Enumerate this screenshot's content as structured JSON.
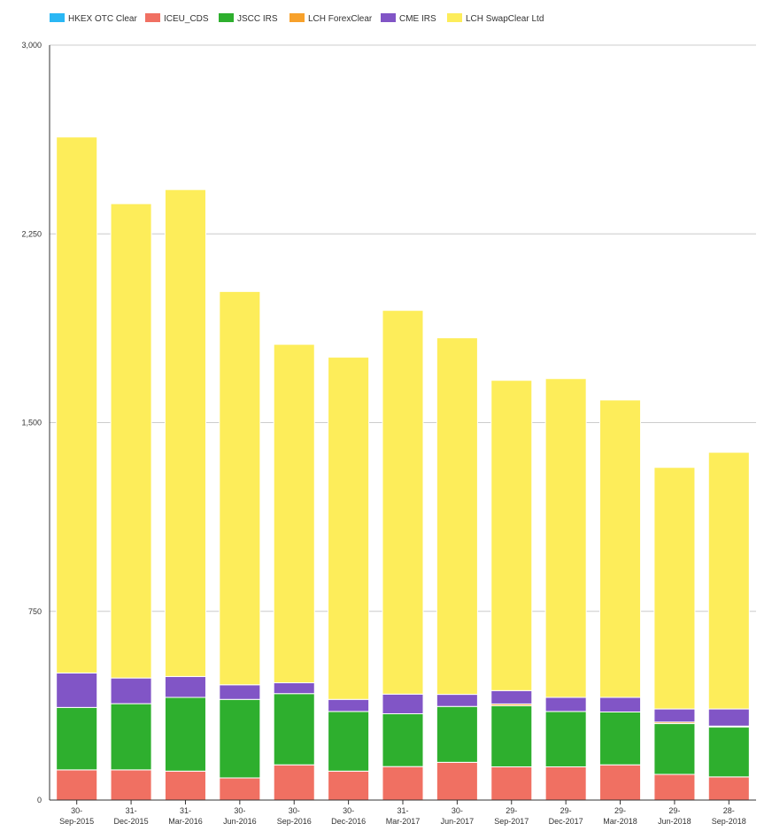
{
  "chart_data": {
    "type": "bar",
    "stacked": true,
    "categories": [
      [
        "30-",
        "Sep-2015"
      ],
      [
        "31-",
        "Dec-2015"
      ],
      [
        "31-",
        "Mar-2016"
      ],
      [
        "30-",
        "Jun-2016"
      ],
      [
        "30-",
        "Sep-2016"
      ],
      [
        "30-",
        "Dec-2016"
      ],
      [
        "31-",
        "Mar-2017"
      ],
      [
        "30-",
        "Jun-2017"
      ],
      [
        "29-",
        "Sep-2017"
      ],
      [
        "29-",
        "Dec-2017"
      ],
      [
        "29-",
        "Mar-2018"
      ],
      [
        "29-",
        "Jun-2018"
      ],
      [
        "28-",
        "Sep-2018"
      ]
    ],
    "series": [
      {
        "name": "HKEX OTC Clear",
        "color": "#2ab7f4",
        "values": [
          0,
          0,
          0,
          0,
          0,
          0,
          0,
          0,
          0,
          0,
          0,
          0,
          0
        ]
      },
      {
        "name": "ICEU_CDS",
        "color": "#f07062",
        "values": [
          120,
          120,
          115,
          88,
          140,
          115,
          133,
          150,
          132,
          132,
          140,
          102,
          92
        ]
      },
      {
        "name": "JSCC IRS",
        "color": "#2eaf2e",
        "values": [
          248,
          263,
          293,
          312,
          283,
          237,
          210,
          222,
          243,
          220,
          210,
          202,
          198
        ]
      },
      {
        "name": "LCH ForexClear",
        "color": "#f7a12b",
        "values": [
          0,
          0,
          0,
          0,
          0,
          0,
          0,
          0,
          7,
          0,
          0,
          6,
          4
        ]
      },
      {
        "name": "CME IRS",
        "color": "#8155c6",
        "values": [
          137,
          102,
          83,
          58,
          43,
          48,
          78,
          48,
          53,
          56,
          58,
          52,
          68
        ]
      },
      {
        "name": "LCH SwapClear Ltd",
        "color": "#fded5a",
        "values": [
          2130,
          1885,
          1935,
          1563,
          1345,
          1360,
          1525,
          1417,
          1233,
          1267,
          1182,
          960,
          1020
        ]
      }
    ],
    "yticks": [
      "0",
      "750",
      "1,500",
      "2,250",
      "3,000"
    ],
    "ylim": [
      0,
      3000
    ],
    "grid": true,
    "legend_position": "top-left"
  }
}
